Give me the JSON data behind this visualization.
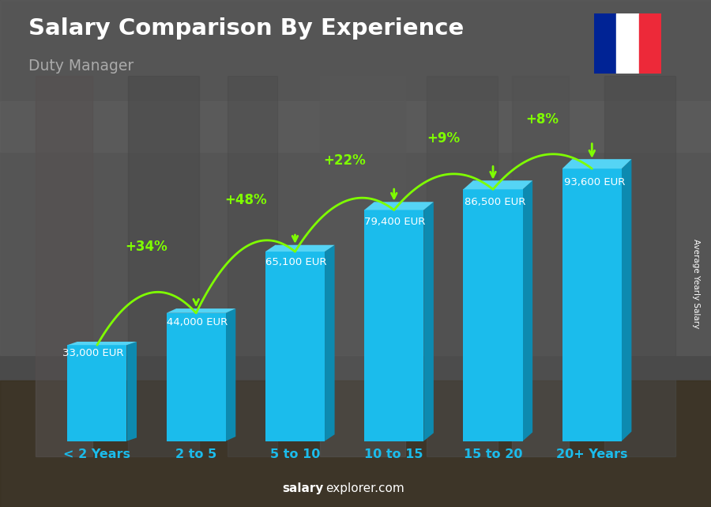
{
  "title": "Salary Comparison By Experience",
  "subtitle": "Duty Manager",
  "categories": [
    "< 2 Years",
    "2 to 5",
    "5 to 10",
    "10 to 15",
    "15 to 20",
    "20+ Years"
  ],
  "values": [
    33000,
    44000,
    65100,
    79400,
    86500,
    93600
  ],
  "value_labels": [
    "33,000 EUR",
    "44,000 EUR",
    "65,100 EUR",
    "79,400 EUR",
    "86,500 EUR",
    "93,600 EUR"
  ],
  "pct_labels": [
    "+34%",
    "+48%",
    "+22%",
    "+9%",
    "+8%"
  ],
  "bar_color_main": "#1bbcec",
  "bar_color_right": "#0d8ab0",
  "bar_color_top": "#55d4f5",
  "title_color": "#ffffff",
  "subtitle_color": "#aaaaaa",
  "label_color": "#ffffff",
  "pct_color": "#7fff00",
  "xticklabel_color": "#1bbcec",
  "watermark_salary": "salary",
  "watermark_explorer": "explorer.com",
  "ylabel_rotated": "Average Yearly Salary",
  "ylim": [
    0,
    108000
  ],
  "flag_colors": [
    "#002395",
    "#ffffff",
    "#ED2939"
  ],
  "arc_data": [
    [
      0,
      1,
      "+34%",
      0.58
    ],
    [
      1,
      2,
      "+48%",
      0.73
    ],
    [
      2,
      3,
      "+22%",
      0.855
    ],
    [
      3,
      4,
      "+9%",
      0.925
    ],
    [
      4,
      5,
      "+8%",
      0.985
    ]
  ]
}
